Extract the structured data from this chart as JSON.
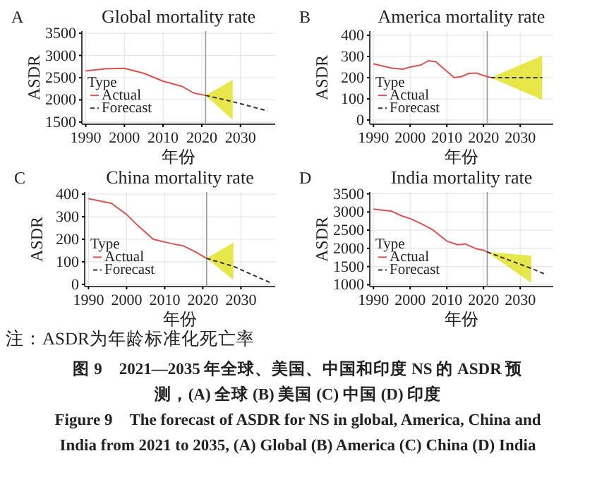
{
  "chart_data": [
    {
      "type": "line",
      "title": "Global mortality rate",
      "annotations": [
        "A"
      ],
      "xlabel": "年份",
      "ylabel": "ASDR",
      "legend_title": "Type",
      "legend": "left",
      "grid": true,
      "xlim": [
        1989,
        2039
      ],
      "xticks": [
        1990,
        2000,
        2010,
        2020,
        2030
      ],
      "ylim": [
        1450,
        3550
      ],
      "yticks": [
        1500,
        2000,
        2500,
        3000,
        3500
      ],
      "ref_lines": [
        {
          "axis": "x",
          "value": 2021,
          "color": "#999999"
        }
      ],
      "series": [
        {
          "name": "Actual",
          "color": "#d9534f",
          "line_style": "solid",
          "x": [
            1990,
            1995,
            2000,
            2005,
            2010,
            2015,
            2018,
            2021
          ],
          "values": [
            2650,
            2700,
            2710,
            2600,
            2420,
            2300,
            2150,
            2100
          ]
        },
        {
          "name": "Forecast",
          "color": "#333333",
          "line_style": "dashed",
          "x": [
            2021,
            2028,
            2037
          ],
          "values": [
            2100,
            1960,
            1750
          ],
          "lower": [
            2100,
            1550,
            null
          ],
          "upper": [
            2100,
            2450,
            null
          ]
        }
      ]
    },
    {
      "type": "line",
      "title": "America mortality rate",
      "annotations": [
        "B"
      ],
      "xlabel": "年份",
      "ylabel": "ASDR",
      "legend_title": "Type",
      "legend": "left",
      "grid": true,
      "xlim": [
        1989,
        2039
      ],
      "xticks": [
        1990,
        2000,
        2010,
        2020,
        2030
      ],
      "ylim": [
        -20,
        420
      ],
      "yticks": [
        0,
        100,
        200,
        300,
        400
      ],
      "ref_lines": [
        {
          "axis": "x",
          "value": 2021,
          "color": "#999999"
        }
      ],
      "series": [
        {
          "name": "Actual",
          "color": "#d9534f",
          "line_style": "solid",
          "x": [
            1990,
            1995,
            1998,
            2000,
            2003,
            2005,
            2007,
            2010,
            2012,
            2014,
            2016,
            2018,
            2020,
            2022
          ],
          "values": [
            265,
            245,
            240,
            250,
            260,
            280,
            275,
            230,
            200,
            205,
            220,
            222,
            210,
            200
          ]
        },
        {
          "name": "Forecast",
          "color": "#333333",
          "line_style": "dashed",
          "x": [
            2022,
            2036
          ],
          "values": [
            200,
            200
          ],
          "lower": [
            200,
            95
          ],
          "upper": [
            200,
            305
          ]
        }
      ]
    },
    {
      "type": "line",
      "title": "China mortality rate",
      "annotations": [
        "C"
      ],
      "xlabel": "年份",
      "ylabel": "ASDR",
      "legend_title": "Type",
      "legend": "left",
      "grid": true,
      "xlim": [
        1989,
        2039
      ],
      "xticks": [
        1990,
        2000,
        2010,
        2020,
        2030
      ],
      "ylim": [
        -10,
        410
      ],
      "yticks": [
        0,
        100,
        200,
        300,
        400
      ],
      "ref_lines": [
        {
          "axis": "x",
          "value": 2021,
          "color": "#999999"
        }
      ],
      "series": [
        {
          "name": "Actual",
          "color": "#d9534f",
          "line_style": "solid",
          "x": [
            1990,
            1996,
            2000,
            2003,
            2007,
            2012,
            2015,
            2018,
            2021
          ],
          "values": [
            380,
            360,
            310,
            260,
            200,
            180,
            170,
            145,
            115
          ]
        },
        {
          "name": "Forecast",
          "color": "#333333",
          "line_style": "dashed",
          "x": [
            2021,
            2028,
            2038
          ],
          "values": [
            115,
            80,
            5
          ],
          "lower": [
            115,
            20,
            null
          ],
          "upper": [
            115,
            185,
            null
          ]
        }
      ]
    },
    {
      "type": "line",
      "title": "India mortality rate",
      "annotations": [
        "D",
        "注：ASDR为年龄标准化死亡率",
        "图 9　2021—2035 年全球、美国、中国和印度 NS 的 ASDR 预",
        "测，(A) 全球 (B) 美国 (C) 中国 (D) 印度",
        "Figure 9　The forecast of ASDR for NS in global, America, China and",
        "India from 2021 to 2035, (A) Global (B) America (C) China (D) India"
      ],
      "xlabel": "年份",
      "ylabel": "ASDR",
      "legend_title": "Type",
      "legend": "left",
      "grid": true,
      "xlim": [
        1989,
        2039
      ],
      "xticks": [
        1990,
        2000,
        2010,
        2020,
        2030
      ],
      "ylim": [
        950,
        3550
      ],
      "yticks": [
        1000,
        1500,
        2000,
        2500,
        3000,
        3500
      ],
      "ref_lines": [
        {
          "axis": "x",
          "value": 2021,
          "color": "#999999"
        }
      ],
      "series": [
        {
          "name": "Actual",
          "color": "#d9534f",
          "line_style": "solid",
          "x": [
            1990,
            1995,
            1998,
            2000,
            2003,
            2006,
            2010,
            2013,
            2015,
            2018,
            2020,
            2021
          ],
          "values": [
            3080,
            3020,
            2880,
            2820,
            2680,
            2520,
            2200,
            2100,
            2120,
            1990,
            1950,
            1900
          ]
        },
        {
          "name": "Forecast",
          "color": "#333333",
          "line_style": "dashed",
          "x": [
            2021,
            2033,
            2037
          ],
          "values": [
            1900,
            1450,
            1280
          ],
          "lower": [
            1900,
            1050,
            null
          ],
          "upper": [
            1900,
            1800,
            null
          ]
        }
      ]
    }
  ]
}
